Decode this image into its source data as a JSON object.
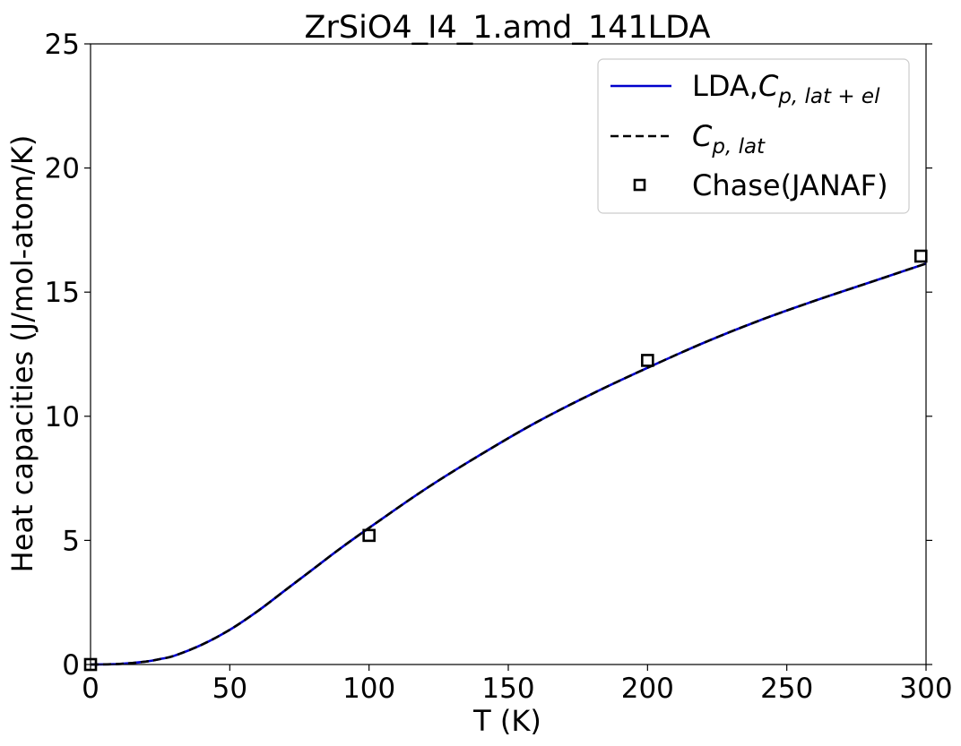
{
  "chart_data": {
    "type": "line",
    "title": "ZrSiO4_I4_1.amd_141LDA",
    "xlabel": "T (K)",
    "ylabel": "Heat capacities (J/mol-atom/K)",
    "xlim": [
      0,
      300
    ],
    "ylim": [
      0,
      25
    ],
    "xticks": [
      "0",
      "50",
      "100",
      "150",
      "200",
      "250",
      "300"
    ],
    "yticks": [
      "0",
      "5",
      "10",
      "15",
      "20",
      "25"
    ],
    "grid": false,
    "legend_position": "top-right",
    "series": [
      {
        "name": "LDA,C_{p,lat+el}",
        "legend_main": "LDA,",
        "legend_sym": "C",
        "legend_sub": "p, lat + el",
        "style": "solid",
        "color": "#0000cc",
        "x": [
          0,
          10,
          20,
          25,
          30,
          40,
          50,
          60,
          70,
          80,
          90,
          100,
          120,
          140,
          160,
          180,
          200,
          220,
          240,
          260,
          280,
          300
        ],
        "y": [
          0,
          0.02,
          0.12,
          0.22,
          0.35,
          0.8,
          1.4,
          2.15,
          3.0,
          3.85,
          4.7,
          5.5,
          7.05,
          8.45,
          9.75,
          10.9,
          11.95,
          12.95,
          13.85,
          14.65,
          15.4,
          16.15
        ]
      },
      {
        "name": "C_{p,lat}",
        "legend_main": "",
        "legend_sym": "C",
        "legend_sub": "p, lat",
        "style": "dashed",
        "color": "#000000",
        "x": [
          0,
          10,
          20,
          25,
          30,
          40,
          50,
          60,
          70,
          80,
          90,
          100,
          120,
          140,
          160,
          180,
          200,
          220,
          240,
          260,
          280,
          300
        ],
        "y": [
          0,
          0.02,
          0.12,
          0.22,
          0.35,
          0.8,
          1.4,
          2.15,
          3.0,
          3.85,
          4.7,
          5.5,
          7.05,
          8.45,
          9.75,
          10.9,
          11.95,
          12.95,
          13.85,
          14.65,
          15.4,
          16.15
        ]
      },
      {
        "name": "Chase(JANAF)",
        "style": "markers",
        "marker": "square",
        "color": "#000000",
        "x": [
          0,
          100,
          200,
          298.15
        ],
        "y": [
          0,
          5.2,
          12.25,
          16.45
        ]
      }
    ]
  }
}
